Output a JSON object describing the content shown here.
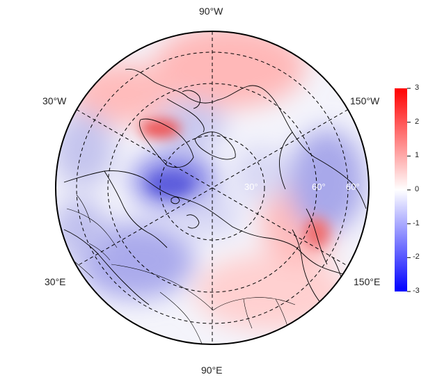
{
  "map": {
    "projection": "north-polar-stereographic",
    "longitude_labels": {
      "top": "90°W",
      "upper_left": "30°W",
      "upper_right": "150°W",
      "lower_left": "30°E",
      "lower_right": "150°E",
      "bottom": "90°E"
    },
    "latitude_labels": [
      "30°",
      "60°",
      "60°"
    ],
    "grid": true,
    "coastlines": true,
    "country_borders": true
  },
  "colorbar": {
    "ticks": [
      "3",
      "2",
      "1",
      "0",
      "-1",
      "-2",
      "-3"
    ],
    "range": [
      -3,
      3
    ],
    "colors": {
      "max": "#ff0000",
      "mid": "#ffffff",
      "min": "#0000ff"
    },
    "placement": "right"
  },
  "colors": {
    "positive": "#ff0000",
    "neutral": "#ffffff",
    "negative": "#0000ff"
  }
}
